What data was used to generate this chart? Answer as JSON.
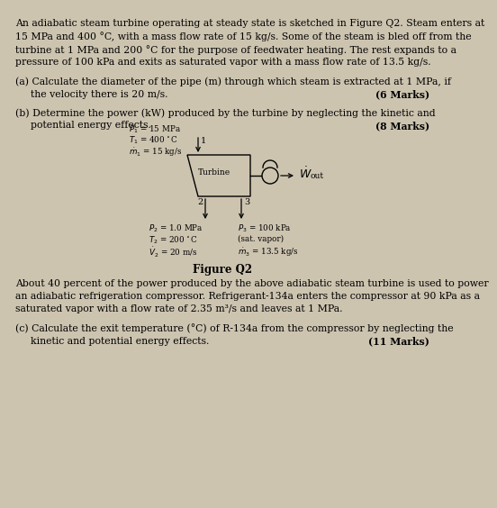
{
  "background_color": "#cdc4b0",
  "text_color": "#000000",
  "font_size_body": 7.8,
  "font_size_small": 6.3,
  "font_size_diagram": 6.5,
  "font_size_title": 8.5,
  "lines1": [
    "An adiabatic steam turbine operating at steady state is sketched in Figure Q2. Steam enters at",
    "15 MPa and 400 °C, with a mass flow rate of 15 kg/s. Some of the steam is bled off from the",
    "turbine at 1 MPa and 200 °C for the purpose of feedwater heating. The rest expands to a",
    "pressure of 100 kPa and exits as saturated vapor with a mass flow rate of 13.5 kg/s."
  ],
  "qa_line1": "(a) Calculate the diameter of the pipe (m) through which steam is extracted at 1 MPa, if",
  "qa_line2": "the velocity there is 20 m/s.",
  "qa_marks": "(6 Marks)",
  "qb_line1": "(b) Determine the power (kW) produced by the turbine by neglecting the kinetic and",
  "qb_line2": "potential energy effects.",
  "qb_marks": "(8 Marks)",
  "lines2": [
    "About 40 percent of the power produced by the above adiabatic steam turbine is used to power",
    "an adiabatic refrigeration compressor. Refrigerant-134a enters the compressor at 90 kPa as a",
    "saturated vapor with a flow rate of 2.35 m³/s and leaves at 1 MPa."
  ],
  "qc_line1": "(c) Calculate the exit temperature (°C) of R-134a from the compressor by neglecting the",
  "qc_line2": "kinetic and potential energy effects.",
  "qc_marks": "(11 Marks)",
  "fig_title": "Figure Q2",
  "turbine_label": "Turbine",
  "wout_label": "W",
  "wout_sub": "out",
  "p1_lines": [
    "P₁ = 15 MPa",
    "T₁ = 400 °C",
    "ṁ₁ = 15 kg/s"
  ],
  "p2_lines": [
    "P₂ = 1.0 MPa",
    "T₂ = 200 °C",
    "ṽ₂ = 20 m/s"
  ],
  "p3_lines": [
    "P₃ = 100 kPa",
    "(sat. vapor)",
    "ṁ₃ = 13.5 kg/s"
  ]
}
